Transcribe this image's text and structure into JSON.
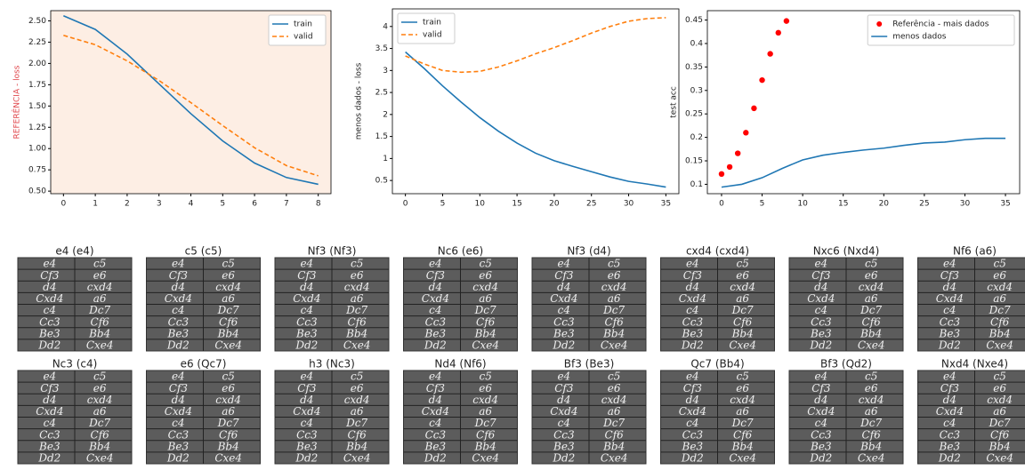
{
  "chart_data": [
    {
      "type": "line",
      "ylabel": "REFERÊNCIA - loss",
      "ylabel_color": "#e0474c",
      "background": "#fdeee4",
      "x": [
        0,
        1,
        2,
        3,
        4,
        5,
        6,
        7,
        8
      ],
      "xlim": [
        -0.4,
        8.4
      ],
      "xticks": [
        0,
        1,
        2,
        3,
        4,
        5,
        6,
        7,
        8
      ],
      "ylim": [
        0.47,
        2.62
      ],
      "yticks": [
        {
          "value": 0.5,
          "label": "0.50"
        },
        {
          "value": 0.75,
          "label": "0.75"
        },
        {
          "value": 1,
          "label": "1.00"
        },
        {
          "value": 1.25,
          "label": "1.25"
        },
        {
          "value": 1.5,
          "label": "1.50"
        },
        {
          "value": 1.75,
          "label": "1.75"
        },
        {
          "value": 2,
          "label": "2.00"
        },
        {
          "value": 2.25,
          "label": "2.25"
        },
        {
          "value": 2.5,
          "label": "2.50"
        }
      ],
      "legend": "upper-right",
      "series": [
        {
          "name": "train",
          "color": "#1f77b4",
          "linestyle": "solid",
          "values": [
            2.56,
            2.4,
            2.11,
            1.76,
            1.41,
            1.09,
            0.83,
            0.66,
            0.58
          ]
        },
        {
          "name": "valid",
          "color": "#ff7f0e",
          "linestyle": "dashed",
          "values": [
            2.33,
            2.22,
            2.03,
            1.8,
            1.54,
            1.27,
            1.01,
            0.8,
            0.68
          ]
        }
      ]
    },
    {
      "type": "line",
      "ylabel": "menos dados - loss",
      "x": [
        0,
        2.5,
        5,
        7.5,
        10,
        12.5,
        15,
        17.5,
        20,
        22.5,
        25,
        27.5,
        30,
        32.5,
        35
      ],
      "xlim": [
        -1.75,
        36.75
      ],
      "xticks": [
        0,
        5,
        10,
        15,
        20,
        25,
        30,
        35
      ],
      "ylim": [
        0.2,
        4.4
      ],
      "yticks": [
        0.5,
        1.0,
        1.5,
        2.0,
        2.5,
        3.0,
        3.5,
        4.0
      ],
      "legend": "upper-left",
      "series": [
        {
          "name": "train",
          "color": "#1f77b4",
          "linestyle": "solid",
          "values": [
            3.42,
            3.05,
            2.65,
            2.28,
            1.93,
            1.62,
            1.35,
            1.12,
            0.95,
            0.82,
            0.7,
            0.58,
            0.48,
            0.42,
            0.35
          ]
        },
        {
          "name": "valid",
          "color": "#ff7f0e",
          "linestyle": "dashed",
          "values": [
            3.33,
            3.15,
            3.0,
            2.96,
            2.98,
            3.08,
            3.22,
            3.38,
            3.52,
            3.68,
            3.85,
            4.0,
            4.12,
            4.18,
            4.2
          ]
        }
      ]
    },
    {
      "type": "scatter",
      "ylabel": "test acc",
      "xlim": [
        -1.75,
        36.75
      ],
      "xticks": [
        0,
        5,
        10,
        15,
        20,
        25,
        30,
        35
      ],
      "ylim": [
        0.08,
        0.47
      ],
      "yticks": [
        0.1,
        0.15,
        0.2,
        0.25,
        0.3,
        0.35,
        0.4,
        0.45
      ],
      "legend": "upper-right",
      "series": [
        {
          "name": "Referência - mais dados",
          "color": "#ff0000",
          "kind": "marker",
          "x": [
            0,
            1,
            2,
            3,
            4,
            5,
            6,
            7,
            8
          ],
          "values": [
            0.122,
            0.137,
            0.166,
            0.21,
            0.262,
            0.322,
            0.378,
            0.423,
            0.448
          ]
        },
        {
          "name": "menos dados",
          "color": "#1f77b4",
          "kind": "line",
          "x": [
            0,
            2.5,
            5,
            7.5,
            10,
            12.5,
            15,
            17.5,
            20,
            22.5,
            25,
            27.5,
            30,
            32.5,
            35
          ],
          "values": [
            0.094,
            0.1,
            0.114,
            0.134,
            0.152,
            0.162,
            0.168,
            0.173,
            0.177,
            0.183,
            0.188,
            0.19,
            0.195,
            0.198,
            0.198
          ]
        }
      ]
    }
  ],
  "scoresheet": [
    "e4",
    "c5",
    "Cf3",
    "e6",
    "d4",
    "cxd4",
    "Cxd4",
    "a6",
    "c4",
    "Dc7",
    "Cc3",
    "Cf6",
    "Be3",
    "Bb4",
    "Dd2",
    "Cxe4"
  ],
  "images": [
    {
      "title": "e4 (e4)"
    },
    {
      "title": "c5 (c5)"
    },
    {
      "title": "Nf3 (Nf3)"
    },
    {
      "title": "Nc6 (e6)"
    },
    {
      "title": "Nf3 (d4)"
    },
    {
      "title": "cxd4 (cxd4)"
    },
    {
      "title": "Nxc6 (Nxd4)"
    },
    {
      "title": "Nf6 (a6)"
    },
    {
      "title": "Nc3 (c4)"
    },
    {
      "title": "e6 (Qc7)"
    },
    {
      "title": "h3 (Nc3)"
    },
    {
      "title": "Nd4 (Nf6)"
    },
    {
      "title": "Bf3 (Be3)"
    },
    {
      "title": "Qc7 (Bb4)"
    },
    {
      "title": "Bf3 (Qd2)"
    },
    {
      "title": "Nxd4 (Nxe4)"
    }
  ]
}
